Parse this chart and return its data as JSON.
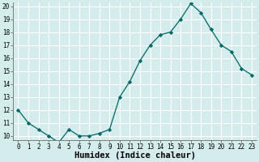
{
  "x": [
    0,
    1,
    2,
    3,
    4,
    5,
    6,
    7,
    8,
    9,
    10,
    11,
    12,
    13,
    14,
    15,
    16,
    17,
    18,
    19,
    20,
    21,
    22,
    23
  ],
  "y": [
    12,
    11,
    10.5,
    10,
    9.5,
    10.5,
    10,
    10,
    10.2,
    10.5,
    13,
    14.2,
    15.8,
    17,
    17.8,
    18,
    19,
    20.2,
    19.5,
    18.2,
    17,
    16.5,
    15.2,
    14.7
  ],
  "line_color": "#006666",
  "marker": "D",
  "marker_size": 2.2,
  "bg_color": "#d5ecec",
  "grid_color": "#ffffff",
  "xlabel": "Humidex (Indice chaleur)",
  "ylim": [
    10,
    20
  ],
  "xlim": [
    -0.5,
    23.5
  ],
  "yticks": [
    10,
    11,
    12,
    13,
    14,
    15,
    16,
    17,
    18,
    19,
    20
  ],
  "xticks": [
    0,
    1,
    2,
    3,
    4,
    5,
    6,
    7,
    8,
    9,
    10,
    11,
    12,
    13,
    14,
    15,
    16,
    17,
    18,
    19,
    20,
    21,
    22,
    23
  ],
  "tick_label_fontsize": 5.5,
  "xlabel_fontsize": 7.5,
  "xlabel_fontweight": "bold"
}
